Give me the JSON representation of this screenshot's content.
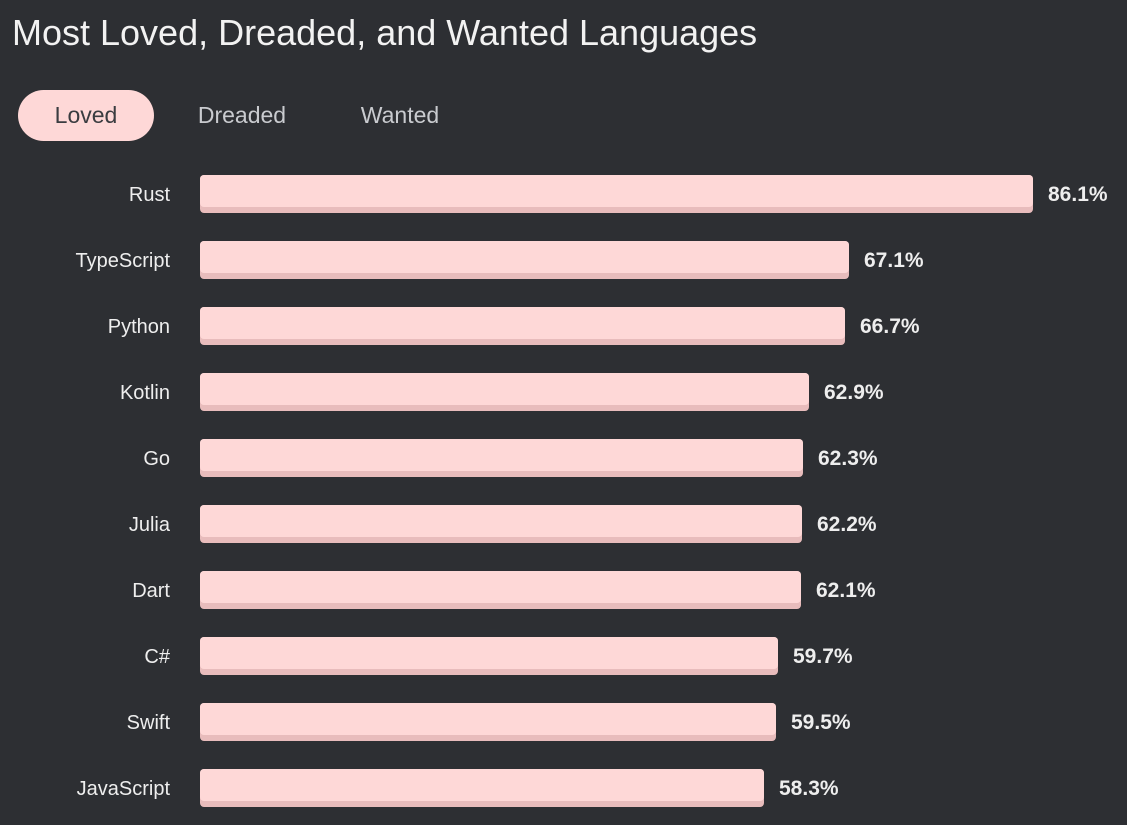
{
  "title": "Most Loved, Dreaded, and Wanted Languages",
  "tabs": [
    {
      "label": "Loved",
      "active": true
    },
    {
      "label": "Dreaded",
      "active": false
    },
    {
      "label": "Wanted",
      "active": false
    }
  ],
  "colors": {
    "background": "#2d2f33",
    "bar": "#fed8d7",
    "bar_shadow": "#e8bcbc",
    "text": "#eeeeee"
  },
  "chart_data": {
    "type": "bar",
    "orientation": "horizontal",
    "title": "Most Loved, Dreaded, and Wanted Languages",
    "categories": [
      "Rust",
      "TypeScript",
      "Python",
      "Kotlin",
      "Go",
      "Julia",
      "Dart",
      "C#",
      "Swift",
      "JavaScript"
    ],
    "values": [
      86.1,
      67.1,
      66.7,
      62.9,
      62.3,
      62.2,
      62.1,
      59.7,
      59.5,
      58.3
    ],
    "value_labels": [
      "86.1%",
      "67.1%",
      "66.7%",
      "62.9%",
      "62.3%",
      "62.2%",
      "62.1%",
      "59.7%",
      "59.5%",
      "58.3%"
    ],
    "xlabel": "",
    "ylabel": "",
    "xlim": [
      0,
      86.1
    ],
    "grid": false,
    "legend": "none"
  }
}
